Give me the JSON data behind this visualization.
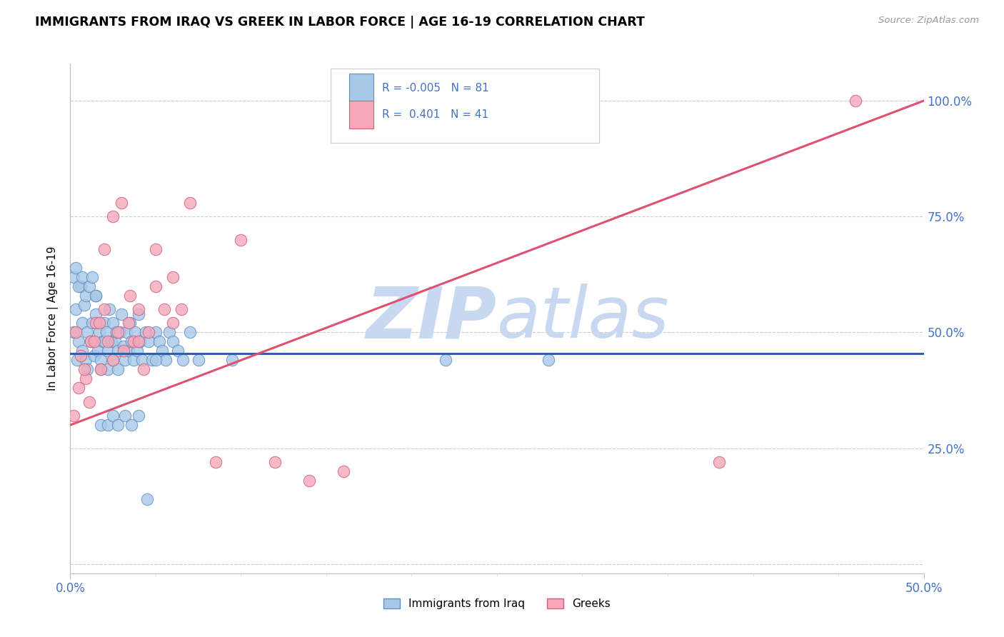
{
  "title": "IMMIGRANTS FROM IRAQ VS GREEK IN LABOR FORCE | AGE 16-19 CORRELATION CHART",
  "source": "Source: ZipAtlas.com",
  "ylabel": "In Labor Force | Age 16-19",
  "xlim": [
    0.0,
    0.5
  ],
  "ylim": [
    -0.02,
    1.08
  ],
  "xtick_positions": [
    0.0,
    0.5
  ],
  "xticklabels": [
    "0.0%",
    "50.0%"
  ],
  "yticks": [
    0.0,
    0.25,
    0.5,
    0.75,
    1.0
  ],
  "yticklabels_right": [
    "",
    "25.0%",
    "50.0%",
    "75.0%",
    "100.0%"
  ],
  "iraq_color": "#a8c8e8",
  "greek_color": "#f4a8b8",
  "iraq_edge": "#6090c0",
  "greek_edge": "#d06080",
  "trend_iraq_color": "#3060b0",
  "trend_greek_color": "#e05070",
  "right_tick_color": "#4472c4",
  "legend_text_color": "#4472c4",
  "grid_color": "#cccccc",
  "background_color": "#ffffff",
  "watermark_zip_color": "#c8d8f0",
  "watermark_atlas_color": "#c8d8f0",
  "iraq_R": -0.005,
  "iraq_N": 81,
  "greek_R": 0.401,
  "greek_N": 41,
  "iraq_trend_y0": 0.455,
  "iraq_trend_y1": 0.455,
  "greek_trend_y0": 0.3,
  "greek_trend_y1": 1.0,
  "iraq_points_x": [
    0.002,
    0.003,
    0.004,
    0.005,
    0.006,
    0.007,
    0.007,
    0.008,
    0.009,
    0.01,
    0.01,
    0.012,
    0.013,
    0.014,
    0.015,
    0.015,
    0.016,
    0.017,
    0.018,
    0.018,
    0.019,
    0.02,
    0.02,
    0.021,
    0.022,
    0.022,
    0.023,
    0.024,
    0.025,
    0.025,
    0.026,
    0.027,
    0.028,
    0.028,
    0.029,
    0.03,
    0.031,
    0.032,
    0.033,
    0.034,
    0.035,
    0.036,
    0.037,
    0.038,
    0.039,
    0.04,
    0.041,
    0.042,
    0.044,
    0.046,
    0.048,
    0.05,
    0.052,
    0.054,
    0.056,
    0.058,
    0.06,
    0.063,
    0.066,
    0.07,
    0.002,
    0.003,
    0.005,
    0.007,
    0.009,
    0.011,
    0.013,
    0.015,
    0.018,
    0.022,
    0.025,
    0.028,
    0.032,
    0.036,
    0.04,
    0.045,
    0.05,
    0.075,
    0.095,
    0.22,
    0.28
  ],
  "iraq_points_y": [
    0.5,
    0.55,
    0.44,
    0.48,
    0.6,
    0.52,
    0.46,
    0.56,
    0.44,
    0.5,
    0.42,
    0.48,
    0.52,
    0.45,
    0.58,
    0.54,
    0.46,
    0.5,
    0.44,
    0.42,
    0.48,
    0.52,
    0.48,
    0.5,
    0.46,
    0.42,
    0.55,
    0.48,
    0.52,
    0.44,
    0.48,
    0.5,
    0.46,
    0.42,
    0.5,
    0.54,
    0.47,
    0.44,
    0.5,
    0.46,
    0.52,
    0.48,
    0.44,
    0.5,
    0.46,
    0.54,
    0.48,
    0.44,
    0.5,
    0.48,
    0.44,
    0.5,
    0.48,
    0.46,
    0.44,
    0.5,
    0.48,
    0.46,
    0.44,
    0.5,
    0.62,
    0.64,
    0.6,
    0.62,
    0.58,
    0.6,
    0.62,
    0.58,
    0.3,
    0.3,
    0.32,
    0.3,
    0.32,
    0.3,
    0.32,
    0.14,
    0.44,
    0.44,
    0.44,
    0.44,
    0.44
  ],
  "greek_points_x": [
    0.003,
    0.006,
    0.009,
    0.012,
    0.015,
    0.018,
    0.02,
    0.022,
    0.025,
    0.028,
    0.031,
    0.034,
    0.037,
    0.04,
    0.043,
    0.046,
    0.05,
    0.055,
    0.06,
    0.065,
    0.002,
    0.005,
    0.008,
    0.011,
    0.014,
    0.017,
    0.02,
    0.025,
    0.03,
    0.035,
    0.04,
    0.05,
    0.06,
    0.07,
    0.085,
    0.1,
    0.12,
    0.14,
    0.16,
    0.38,
    0.46
  ],
  "greek_points_y": [
    0.5,
    0.45,
    0.4,
    0.48,
    0.52,
    0.42,
    0.55,
    0.48,
    0.44,
    0.5,
    0.46,
    0.52,
    0.48,
    0.55,
    0.42,
    0.5,
    0.6,
    0.55,
    0.62,
    0.55,
    0.32,
    0.38,
    0.42,
    0.35,
    0.48,
    0.52,
    0.68,
    0.75,
    0.78,
    0.58,
    0.48,
    0.68,
    0.52,
    0.78,
    0.22,
    0.7,
    0.22,
    0.18,
    0.2,
    0.22,
    1.0
  ]
}
